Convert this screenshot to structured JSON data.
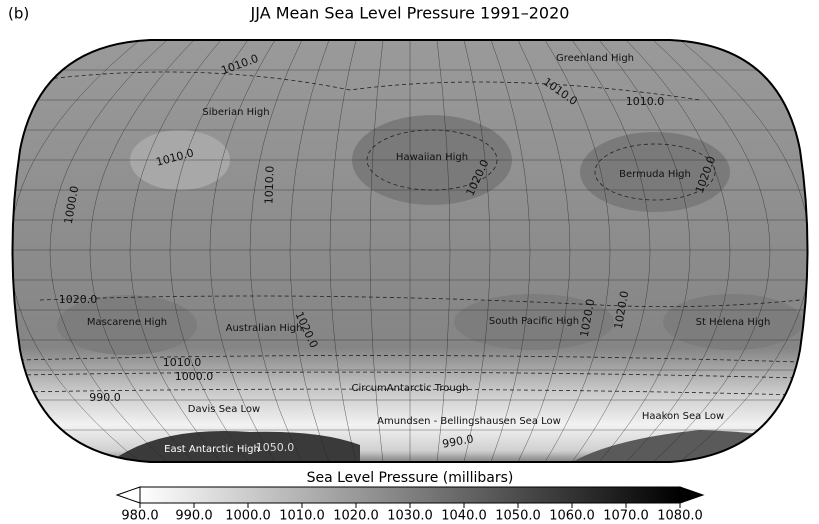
{
  "panel_label": "(b)",
  "title": "JJA Mean Sea Level Pressure 1991–2020",
  "regions": [
    "Greenland High",
    "Siberian High",
    "Hawaiian High",
    "Bermuda High",
    "Mascarene High",
    "Australian High",
    "South Pacific High",
    "St Helena High",
    "CircumAntarctic Trough",
    "Davis Sea Low",
    "Amundsen - Bellingshausen Sea Low",
    "Haakon Sea Low",
    "East Antarctic High"
  ],
  "contour_labels": [
    "1010.0",
    "1010.0",
    "1010.0",
    "1010.0",
    "1000.0",
    "1010.0",
    "1020.0",
    "1020.0",
    "1020.0",
    "1020.0",
    "1020.0",
    "1020.0",
    "1010.0",
    "1000.0",
    "990.0",
    "990.0",
    "1050.0"
  ],
  "colorbar": {
    "title": "Sea Level Pressure (millibars)",
    "lim": [
      980,
      1080
    ],
    "colors": [
      "#ffffff",
      "#000000"
    ],
    "ticks": [
      {
        "value": 980,
        "label": "980.0"
      },
      {
        "value": 990,
        "label": "990.0"
      },
      {
        "value": 1000,
        "label": "1000.0"
      },
      {
        "value": 1010,
        "label": "1010.0"
      },
      {
        "value": 1020,
        "label": "1020.0"
      },
      {
        "value": 1030,
        "label": "1030.0"
      },
      {
        "value": 1040,
        "label": "1040.0"
      },
      {
        "value": 1050,
        "label": "1050.0"
      },
      {
        "value": 1060,
        "label": "1060.0"
      },
      {
        "value": 1070,
        "label": "1070.0"
      },
      {
        "value": 1080,
        "label": "1080.0"
      }
    ]
  }
}
